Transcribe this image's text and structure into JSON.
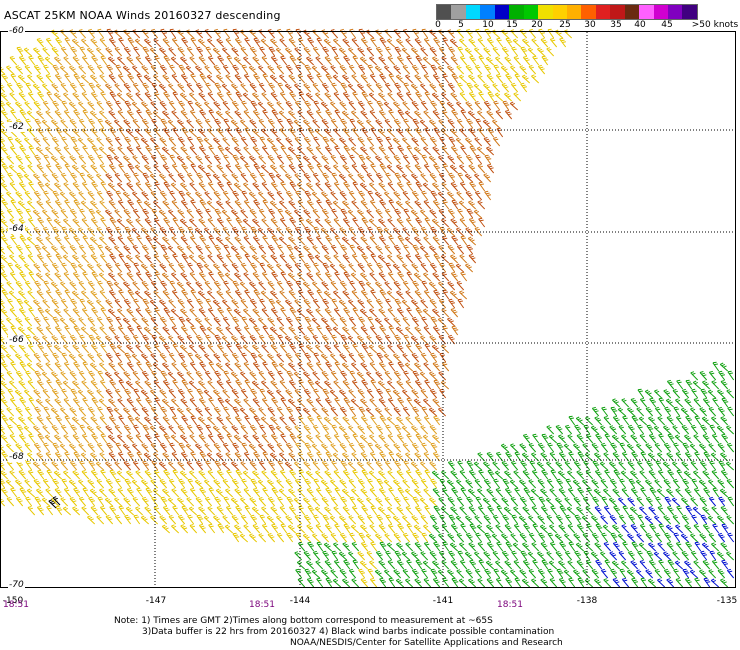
{
  "title": "ASCAT 25KM NOAA Winds 20160327 descending",
  "colorbar": {
    "colors": [
      "#505050",
      "#a0a0a0",
      "#00d8ff",
      "#0080ff",
      "#0000c8",
      "#00b000",
      "#00c800",
      "#f0e000",
      "#ffd000",
      "#ffb000",
      "#ff6000",
      "#e02020",
      "#c01818",
      "#6a2a10",
      "#ff60ff",
      "#d000d0",
      "#8000c0",
      "#400080"
    ],
    "ticks": [
      "0",
      "5",
      "10",
      "15",
      "20",
      "25",
      "30",
      "35",
      "40",
      "45",
      ">50 knots"
    ],
    "unit": "knots"
  },
  "axes": {
    "lat_ticks": [
      "-60",
      "-62",
      "-64",
      "-66",
      "-68",
      "-70"
    ],
    "lon_ticks": [
      "-150",
      "-147",
      "-144",
      "-141",
      "-138",
      "-135"
    ],
    "times": [
      "18:51",
      "18:51",
      "18:51"
    ],
    "lat_range": [
      -70,
      -60
    ],
    "lon_range": [
      -150,
      -135
    ],
    "grid": true
  },
  "notes": {
    "line1": "Note: 1) Times are GMT 2)Times along bottom correspond to measurement at ~65S",
    "line2": "3)Data buffer is 22 hrs from 20160327 4) Black wind barbs indicate possible contamination",
    "line3": "NOAA/NESDIS/Center for Satellite Applications and Research"
  },
  "wind_colors": {
    "low_yellow": "#e8c800",
    "mid_orange": "#d07818",
    "high_orange": "#c05010",
    "green": "#10a010",
    "blue": "#0010d0",
    "contaminated": "#000000"
  }
}
